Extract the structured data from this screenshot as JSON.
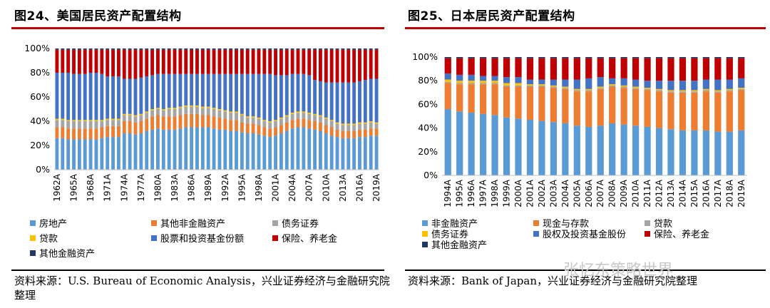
{
  "left": {
    "title": "图24、美国居民资产配置结构",
    "source": "资料来源：U.S. Bureau of Economic Analysis，兴业证券经济与金融研究院整理",
    "chart_data": {
      "type": "bar",
      "stacked": true,
      "title": "图24、美国居民资产配置结构",
      "xlabel": "",
      "ylabel": "",
      "ylim": [
        0,
        100
      ],
      "yticks": [
        "0%",
        "20%",
        "40%",
        "60%",
        "80%",
        "100%"
      ],
      "x_tick_labels": [
        "1962A",
        "1965A",
        "1968A",
        "1971A",
        "1974A",
        "1977A",
        "1980A",
        "1983A",
        "1986A",
        "1989A",
        "1992A",
        "1995A",
        "1998A",
        "2001A",
        "2004A",
        "2007A",
        "2010A",
        "2013A",
        "2016A",
        "2019A"
      ],
      "categories": [
        "1962A",
        "1963A",
        "1964A",
        "1965A",
        "1966A",
        "1967A",
        "1968A",
        "1969A",
        "1970A",
        "1971A",
        "1972A",
        "1973A",
        "1974A",
        "1975A",
        "1976A",
        "1977A",
        "1978A",
        "1979A",
        "1980A",
        "1981A",
        "1982A",
        "1983A",
        "1984A",
        "1985A",
        "1986A",
        "1987A",
        "1988A",
        "1989A",
        "1990A",
        "1991A",
        "1992A",
        "1993A",
        "1994A",
        "1995A",
        "1996A",
        "1997A",
        "1998A",
        "1999A",
        "2000A",
        "2001A",
        "2002A",
        "2003A",
        "2004A",
        "2005A",
        "2006A",
        "2007A",
        "2008A",
        "2009A",
        "2010A",
        "2011A",
        "2012A",
        "2013A",
        "2014A",
        "2015A",
        "2016A",
        "2017A",
        "2018A",
        "2019A"
      ],
      "legend_columns": 3,
      "series": [
        {
          "name": "房地产",
          "color": "#5b9bd5",
          "values": [
            26,
            26,
            25,
            25,
            25,
            25,
            25,
            25,
            26,
            27,
            27,
            27,
            30,
            30,
            29,
            30,
            32,
            33,
            34,
            33,
            33,
            33,
            34,
            35,
            35,
            35,
            35,
            35,
            34,
            33,
            33,
            32,
            32,
            31,
            30,
            30,
            29,
            28,
            27,
            28,
            30,
            32,
            34,
            35,
            35,
            34,
            33,
            32,
            30,
            28,
            27,
            26,
            26,
            26,
            27,
            27,
            28,
            28
          ]
        },
        {
          "name": "其他非金融资产",
          "color": "#ed7d31",
          "values": [
            9,
            9,
            9,
            9,
            9,
            9,
            9,
            9,
            9,
            9,
            9,
            9,
            10,
            10,
            10,
            10,
            10,
            11,
            11,
            11,
            11,
            11,
            11,
            11,
            11,
            11,
            10,
            10,
            10,
            10,
            9,
            9,
            9,
            8,
            8,
            8,
            8,
            7,
            7,
            7,
            7,
            7,
            7,
            7,
            7,
            7,
            7,
            7,
            7,
            7,
            6,
            6,
            6,
            6,
            6,
            6,
            6,
            6
          ]
        },
        {
          "name": "债务证券",
          "color": "#a5a5a5",
          "values": [
            6,
            6,
            6,
            6,
            6,
            6,
            6,
            6,
            5,
            5,
            5,
            5,
            5,
            5,
            5,
            5,
            5,
            5,
            5,
            5,
            6,
            6,
            6,
            6,
            6,
            6,
            6,
            6,
            6,
            6,
            6,
            6,
            6,
            6,
            5,
            5,
            5,
            5,
            5,
            5,
            5,
            5,
            5,
            5,
            5,
            5,
            5,
            5,
            5,
            5,
            5,
            5,
            5,
            5,
            5,
            5,
            5,
            4
          ]
        },
        {
          "name": "贷款",
          "color": "#ffc000",
          "values": [
            1,
            1,
            1,
            1,
            1,
            1,
            1,
            1,
            1,
            1,
            1,
            1,
            1,
            1,
            1,
            1,
            1,
            1,
            1,
            1,
            1,
            1,
            1,
            1,
            1,
            1,
            1,
            1,
            1,
            1,
            1,
            1,
            1,
            1,
            1,
            1,
            1,
            1,
            1,
            1,
            1,
            1,
            1,
            1,
            1,
            1,
            1,
            1,
            1,
            1,
            1,
            1,
            1,
            1,
            1,
            1,
            1,
            1
          ]
        },
        {
          "name": "股票和投资基金份额",
          "color": "#4472c4",
          "values": [
            38,
            38,
            39,
            38,
            38,
            38,
            39,
            39,
            38,
            35,
            35,
            35,
            29,
            29,
            30,
            30,
            29,
            28,
            28,
            29,
            28,
            28,
            27,
            26,
            26,
            26,
            27,
            27,
            28,
            29,
            30,
            31,
            31,
            33,
            35,
            35,
            36,
            38,
            39,
            37,
            35,
            33,
            32,
            31,
            31,
            31,
            28,
            28,
            29,
            31,
            33,
            34,
            34,
            34,
            34,
            35,
            35,
            36
          ]
        },
        {
          "name": "保险、养老金",
          "color": "#c00000",
          "values": [
            19,
            19,
            19,
            20,
            20,
            20,
            19,
            19,
            20,
            22,
            22,
            22,
            24,
            24,
            24,
            23,
            22,
            21,
            20,
            20,
            20,
            20,
            20,
            20,
            20,
            20,
            20,
            20,
            20,
            20,
            20,
            20,
            20,
            20,
            20,
            20,
            20,
            20,
            20,
            21,
            21,
            21,
            20,
            20,
            20,
            21,
            25,
            26,
            27,
            27,
            27,
            27,
            27,
            27,
            26,
            25,
            24,
            24
          ]
        },
        {
          "name": "其他金融资产",
          "color": "#203864",
          "values": [
            1,
            1,
            1,
            1,
            1,
            1,
            1,
            1,
            1,
            1,
            1,
            1,
            1,
            1,
            1,
            1,
            1,
            1,
            1,
            1,
            1,
            1,
            1,
            1,
            1,
            1,
            1,
            1,
            1,
            1,
            1,
            1,
            1,
            1,
            1,
            1,
            1,
            1,
            1,
            1,
            1,
            1,
            1,
            1,
            1,
            1,
            1,
            1,
            1,
            1,
            1,
            1,
            1,
            1,
            1,
            1,
            1,
            1
          ]
        }
      ]
    }
  },
  "right": {
    "title": "图25、日本居民资产配置结构",
    "source": "资料来源：Bank of Japan，兴业证券经济与金融研究院整理",
    "chart_data": {
      "type": "bar",
      "stacked": true,
      "title": "图25、日本居民资产配置结构",
      "xlabel": "",
      "ylabel": "",
      "ylim": [
        0,
        100
      ],
      "yticks": [
        "0%",
        "20%",
        "40%",
        "60%",
        "80%",
        "100%"
      ],
      "x_tick_labels": [
        "1994A",
        "1995A",
        "1996A",
        "1997A",
        "1998A",
        "1999A",
        "2000A",
        "2001A",
        "2002A",
        "2003A",
        "2004A",
        "2005A",
        "2006A",
        "2007A",
        "2008A",
        "2009A",
        "2010A",
        "2011A",
        "2012A",
        "2013A",
        "2014A",
        "2015A",
        "2016A",
        "2017A",
        "2018A",
        "2019A"
      ],
      "categories": [
        "1994A",
        "1995A",
        "1996A",
        "1997A",
        "1998A",
        "1999A",
        "2000A",
        "2001A",
        "2002A",
        "2003A",
        "2004A",
        "2005A",
        "2006A",
        "2007A",
        "2008A",
        "2009A",
        "2010A",
        "2011A",
        "2012A",
        "2013A",
        "2014A",
        "2015A",
        "2016A",
        "2017A",
        "2018A",
        "2019A"
      ],
      "legend_columns": 3,
      "series": [
        {
          "name": "非金融资产",
          "color": "#5b9bd5",
          "values": [
            56,
            54,
            53,
            52,
            51,
            49,
            48,
            47,
            46,
            45,
            44,
            42,
            41,
            42,
            44,
            43,
            42,
            41,
            40,
            39,
            38,
            38,
            38,
            37,
            37,
            38
          ]
        },
        {
          "name": "现金与存款",
          "color": "#ed7d31",
          "values": [
            22,
            23,
            24,
            25,
            26,
            26,
            27,
            28,
            29,
            29,
            29,
            29,
            30,
            31,
            31,
            31,
            31,
            31,
            31,
            31,
            32,
            32,
            33,
            33,
            34,
            34
          ]
        },
        {
          "name": "贷款",
          "color": "#a5a5a5",
          "values": [
            1,
            1,
            1,
            1,
            1,
            1,
            1,
            1,
            1,
            1,
            1,
            1,
            1,
            1,
            1,
            1,
            1,
            1,
            1,
            1,
            1,
            1,
            1,
            1,
            1,
            1
          ]
        },
        {
          "name": "债务证券",
          "color": "#ffc000",
          "values": [
            2,
            2,
            2,
            2,
            2,
            2,
            2,
            1,
            1,
            1,
            1,
            1,
            1,
            1,
            1,
            1,
            1,
            1,
            1,
            1,
            1,
            1,
            1,
            1,
            1,
            1
          ]
        },
        {
          "name": "股权及投资基金股份",
          "color": "#4472c4",
          "values": [
            5,
            5,
            5,
            4,
            4,
            5,
            5,
            4,
            4,
            5,
            6,
            8,
            9,
            8,
            5,
            6,
            6,
            6,
            7,
            8,
            8,
            8,
            8,
            9,
            8,
            8
          ]
        },
        {
          "name": "保险、养老金",
          "color": "#c00000",
          "values": [
            13,
            14,
            14,
            15,
            15,
            16,
            16,
            18,
            18,
            18,
            18,
            18,
            17,
            16,
            17,
            17,
            18,
            19,
            19,
            19,
            19,
            19,
            18,
            18,
            18,
            17
          ]
        },
        {
          "name": "其他金融资产",
          "color": "#203864",
          "values": [
            1,
            1,
            1,
            1,
            1,
            1,
            1,
            1,
            1,
            1,
            1,
            1,
            1,
            1,
            1,
            1,
            1,
            1,
            1,
            1,
            1,
            1,
            1,
            1,
            1,
            1
          ]
        }
      ]
    }
  },
  "watermark": "张忆东策略世界"
}
